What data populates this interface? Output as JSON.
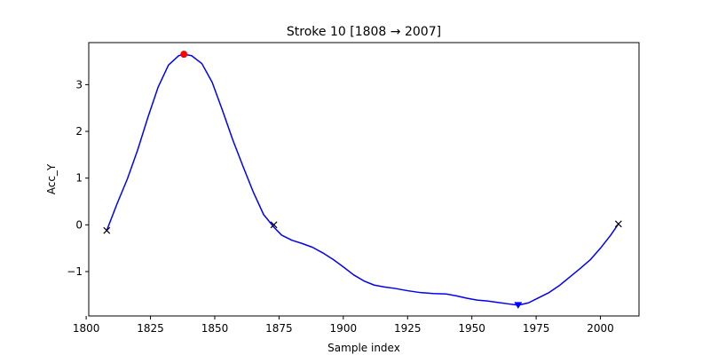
{
  "chart_data": {
    "type": "line",
    "title": "Stroke 10  [1808 → 2007]",
    "xlabel": "Sample index",
    "ylabel": "Acc_Y",
    "xlim": [
      1801,
      2015
    ],
    "ylim": [
      -1.95,
      3.9
    ],
    "grid": false,
    "x_ticks": [
      1800,
      1825,
      1850,
      1875,
      1900,
      1925,
      1950,
      1975,
      2000
    ],
    "y_ticks": [
      -1,
      0,
      1,
      2,
      3
    ],
    "x_tick_labels": [
      "1800",
      "1825",
      "1850",
      "1875",
      "1900",
      "1925",
      "1950",
      "1975",
      "2000"
    ],
    "y_tick_labels": [
      "−1",
      "0",
      "1",
      "2",
      "3"
    ],
    "colors": {
      "line": "#0000ff",
      "peak": "#ff0000",
      "trough": "#0000ff",
      "boundary": "#000000"
    },
    "series": [
      {
        "x": [
          1808,
          1812,
          1816,
          1820,
          1824,
          1828,
          1832,
          1836,
          1838,
          1841,
          1845,
          1849,
          1853,
          1857,
          1861,
          1865,
          1869,
          1873,
          1876,
          1880,
          1884,
          1888,
          1892,
          1896,
          1900,
          1904,
          1908,
          1912,
          1916,
          1920,
          1925,
          1930,
          1935,
          1940,
          1944,
          1948,
          1952,
          1956,
          1960,
          1964,
          1968,
          1972,
          1976,
          1980,
          1984,
          1988,
          1992,
          1996,
          2000,
          2004,
          2007
        ],
        "y": [
          -0.12,
          0.45,
          0.98,
          1.6,
          2.3,
          2.95,
          3.42,
          3.62,
          3.65,
          3.62,
          3.45,
          3.05,
          2.45,
          1.82,
          1.25,
          0.7,
          0.22,
          -0.05,
          -0.22,
          -0.33,
          -0.4,
          -0.48,
          -0.6,
          -0.74,
          -0.9,
          -1.07,
          -1.2,
          -1.29,
          -1.33,
          -1.36,
          -1.41,
          -1.45,
          -1.47,
          -1.48,
          -1.52,
          -1.57,
          -1.61,
          -1.63,
          -1.66,
          -1.69,
          -1.72,
          -1.67,
          -1.56,
          -1.45,
          -1.3,
          -1.12,
          -0.94,
          -0.75,
          -0.5,
          -0.22,
          0.02
        ]
      }
    ],
    "markers": {
      "peak": {
        "x": 1838,
        "y": 3.65
      },
      "trough": {
        "x": 1968,
        "y": -1.72
      },
      "boundaries": [
        {
          "x": 1808,
          "y": -0.12
        },
        {
          "x": 1873,
          "y": 0.0
        },
        {
          "x": 2007,
          "y": 0.02
        }
      ]
    }
  }
}
